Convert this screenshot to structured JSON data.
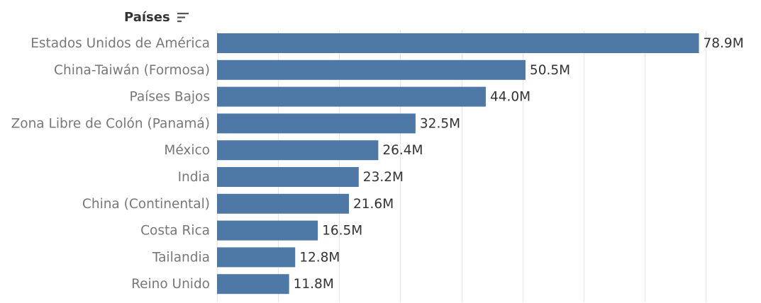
{
  "header": {
    "axis_title": "Países",
    "sort_icon": "sort-descending-icon"
  },
  "colors": {
    "bar": "#4e79a7",
    "gridline": "#e6e6e6",
    "category_text": "#777777",
    "value_text": "#333333"
  },
  "chart_data": {
    "type": "bar",
    "orientation": "horizontal",
    "categories": [
      "Estados Unidos de América",
      "China-Taiwán (Formosa)",
      "Países Bajos",
      "Zona Libre de Colón (Panamá)",
      "México",
      "India",
      "China (Continental)",
      "Costa Rica",
      "Tailandia",
      "Reino Unido"
    ],
    "values": [
      78.9,
      50.5,
      44.0,
      32.5,
      26.4,
      23.2,
      21.6,
      16.5,
      12.8,
      11.8
    ],
    "value_labels": [
      "78.9M",
      "50.5M",
      "44.0M",
      "32.5M",
      "26.4M",
      "23.2M",
      "21.6M",
      "16.5M",
      "12.8M",
      "11.8M"
    ],
    "xlim": [
      0,
      80
    ],
    "grid": true,
    "title": "",
    "xlabel": "",
    "ylabel": "Países"
  }
}
